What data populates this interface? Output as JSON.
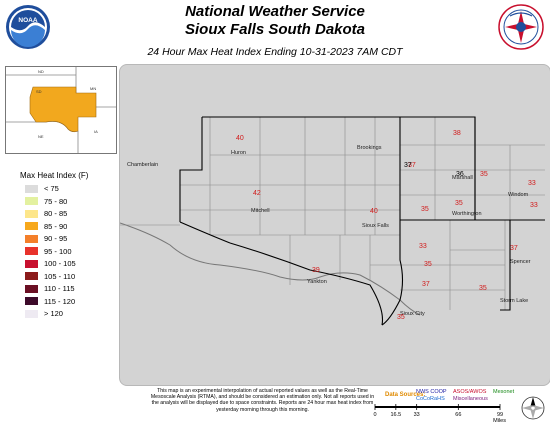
{
  "header": {
    "title_line1": "National Weather Service",
    "title_line2": "Sioux Falls South Dakota",
    "subtitle": "24 Hour Max Heat Index Ending 10-31-2023 7AM CDT"
  },
  "logos": {
    "left": {
      "name": "noaa-logo",
      "text": "NOAA"
    },
    "right": {
      "name": "nws-logo"
    }
  },
  "inset": {
    "labels": [
      {
        "text": "ND"
      },
      {
        "text": "MN"
      },
      {
        "text": "SD"
      },
      {
        "text": "NE"
      },
      {
        "text": "IA"
      }
    ]
  },
  "legend": {
    "title": "Max Heat Index (F)",
    "items": [
      {
        "label": "< 75",
        "color": "#dcdcdc"
      },
      {
        "label": "75 - 80",
        "color": "#e3f1a0"
      },
      {
        "label": "80 - 85",
        "color": "#fde68a"
      },
      {
        "label": "85 - 90",
        "color": "#f7a81c"
      },
      {
        "label": "90 - 95",
        "color": "#f47f2a"
      },
      {
        "label": "95 - 100",
        "color": "#e8322b"
      },
      {
        "label": "100 - 105",
        "color": "#c8102e"
      },
      {
        "label": "105 - 110",
        "color": "#8b1a1a"
      },
      {
        "label": "110 - 115",
        "color": "#6b0f24"
      },
      {
        "label": "115 - 120",
        "color": "#3d0a2a"
      },
      {
        "label": "> 120",
        "color": "#eeeaf2"
      }
    ]
  },
  "map": {
    "city_labels": [
      "Huron",
      "Brookings",
      "Marshall",
      "Chamberlain",
      "Mitchell",
      "Sioux Falls",
      "Windom",
      "Worthington",
      "Spencer",
      "Yankton",
      "Sioux City",
      "Storm Lake"
    ],
    "values": [
      "40",
      "38",
      "37",
      "42",
      "36",
      "35",
      "35",
      "33",
      "40",
      "35",
      "33",
      "33",
      "35",
      "37",
      "39",
      "35",
      "37",
      "35",
      "37"
    ]
  },
  "footer": {
    "disclaimer": "This map is an experimental interpolation of actual reported values as well as the Real-Time Mesoscale Analysis (RTMA), and should be considered an estimation only. Not all reports used in the analysis will be displayed due to space constraints. Reports are 24 hour max heat index from yesterday morning through this morning.",
    "data_sources_label": "Data Sources:",
    "sources": [
      {
        "name": "NWS COOP",
        "color": "#1a1aa0"
      },
      {
        "name": "ASOS/AWOS",
        "color": "#c8102e"
      },
      {
        "name": "Mesonet",
        "color": "#1a8a1a"
      },
      {
        "name": "CoCoRaHS",
        "color": "#1a6ad0"
      },
      {
        "name": "Miscellaneous",
        "color": "#7a1a7a"
      }
    ],
    "scale_ticks": [
      "0",
      "16.5",
      "33",
      "66",
      "99"
    ],
    "scale_unit": "Miles"
  }
}
